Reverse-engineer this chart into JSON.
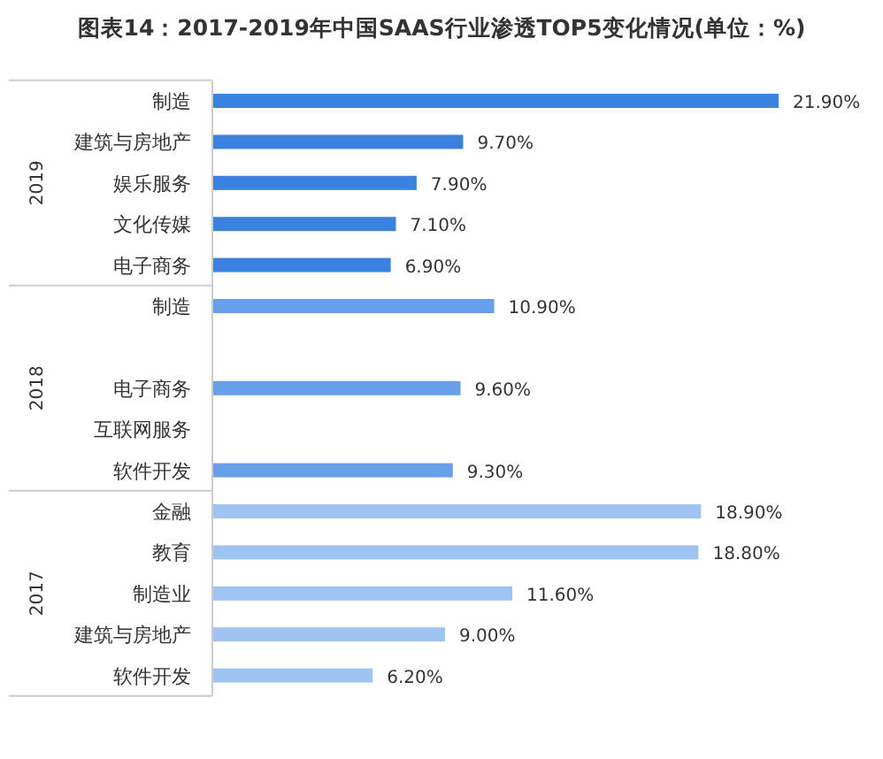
{
  "chart_data": {
    "type": "bar",
    "orientation": "horizontal",
    "title": "图表14：2017-2019年中国SAAS行业渗透TOP5变化情况(单位：%)",
    "categories": [
      "制造",
      "建筑与房地产",
      "娱乐服务",
      "文化传媒",
      "电子商务",
      "制造",
      null,
      "电子商务",
      "互联网服务",
      "软件开发",
      "金融",
      "教育",
      "制造业",
      "建筑与房地产",
      "软件开发"
    ],
    "values": [
      21.9,
      9.7,
      7.9,
      7.1,
      6.9,
      10.9,
      null,
      9.6,
      null,
      9.3,
      18.9,
      18.8,
      11.6,
      9.0,
      6.2
    ],
    "value_labels": [
      "21.90%",
      "9.70%",
      "7.90%",
      "7.10%",
      "6.90%",
      "10.90%",
      null,
      "9.60%",
      null,
      "9.30%",
      "18.90%",
      "18.80%",
      "11.60%",
      "9.00%",
      "6.20%"
    ],
    "colors": [
      "#3b82de",
      "#3b82de",
      "#3b82de",
      "#3b82de",
      "#3b82de",
      "#679fe8",
      null,
      "#679fe8",
      null,
      "#679fe8",
      "#9fc4f2",
      "#9fc4f2",
      "#9fc4f2",
      "#9fc4f2",
      "#9fc4f2"
    ],
    "annotations": [
      "2019",
      "2018",
      "2017"
    ]
  }
}
